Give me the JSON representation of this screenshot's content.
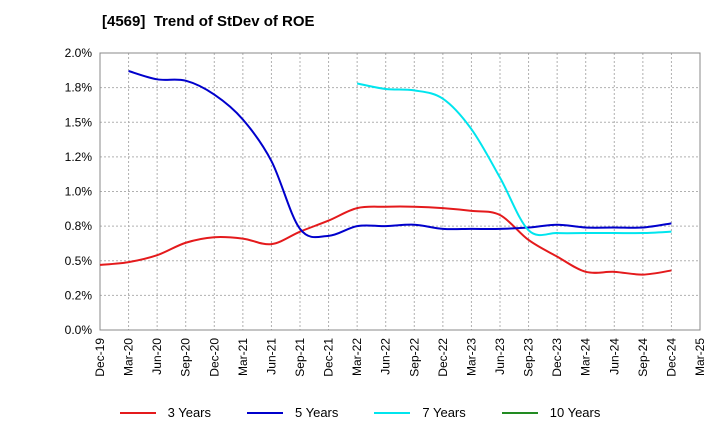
{
  "chart_data": {
    "type": "line",
    "title": "[4569]  Trend of StDev of ROE",
    "xlabel": "",
    "ylabel": "",
    "ylim": [
      0,
      2.0
    ],
    "yticks": [
      "0.0%",
      "0.2%",
      "0.5%",
      "0.8%",
      "1.0%",
      "1.2%",
      "1.5%",
      "1.8%",
      "2.0%"
    ],
    "categories": [
      "Dec-19",
      "Mar-20",
      "Jun-20",
      "Sep-20",
      "Dec-20",
      "Mar-21",
      "Jun-21",
      "Sep-21",
      "Dec-21",
      "Mar-22",
      "Jun-22",
      "Sep-22",
      "Dec-22",
      "Mar-23",
      "Jun-23",
      "Sep-23",
      "Dec-23",
      "Mar-24",
      "Jun-24",
      "Sep-24",
      "Dec-24",
      "Mar-25"
    ],
    "grid": true,
    "legend_position": "bottom",
    "series": [
      {
        "name": "3 Years",
        "color": "#e41a1c",
        "values": [
          0.47,
          0.49,
          0.54,
          0.63,
          0.67,
          0.66,
          0.62,
          0.71,
          0.79,
          0.88,
          0.89,
          0.89,
          0.88,
          0.86,
          0.83,
          0.65,
          0.53,
          0.42,
          0.42,
          0.4,
          0.43,
          null
        ]
      },
      {
        "name": "5 Years",
        "color": "#0000cc",
        "values": [
          null,
          1.87,
          1.81,
          1.8,
          1.7,
          1.52,
          1.22,
          0.73,
          0.68,
          0.75,
          0.75,
          0.76,
          0.73,
          0.73,
          0.73,
          0.74,
          0.76,
          0.74,
          0.74,
          0.74,
          0.77,
          null
        ]
      },
      {
        "name": "7 Years",
        "color": "#00e5ee",
        "values": [
          null,
          null,
          null,
          null,
          null,
          null,
          null,
          null,
          null,
          1.78,
          1.74,
          1.73,
          1.67,
          1.45,
          1.1,
          0.72,
          0.7,
          0.7,
          0.7,
          0.7,
          0.71,
          null
        ]
      },
      {
        "name": "10 Years",
        "color": "#228b22",
        "values": [
          null,
          null,
          null,
          null,
          null,
          null,
          null,
          null,
          null,
          null,
          null,
          null,
          null,
          null,
          null,
          null,
          null,
          null,
          null,
          null,
          null,
          null
        ]
      }
    ]
  }
}
